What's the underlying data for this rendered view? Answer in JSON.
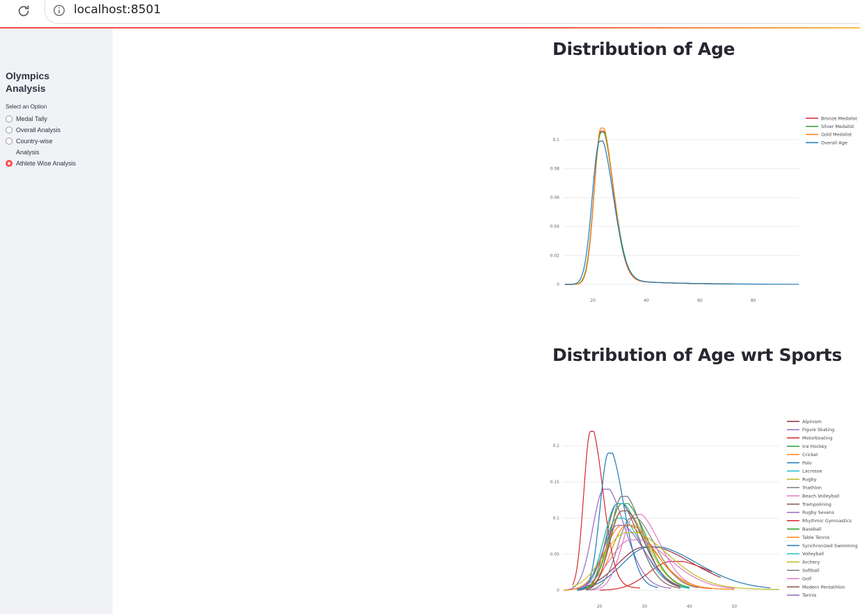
{
  "browser": {
    "url": "localhost:8501"
  },
  "sidebar": {
    "title": "Olympics Analysis",
    "radio_label": "Select an Option",
    "options": [
      {
        "label": "Medal Tally",
        "checked": false
      },
      {
        "label": "Overall Analysis",
        "checked": false
      },
      {
        "label": "Country-wise Analysis",
        "checked": false
      },
      {
        "label": "Athlete Wise Analysis",
        "checked": true
      }
    ],
    "accent_color": "#ff4b4b"
  },
  "main": {
    "section1_title": "Distribution of Age",
    "section2_title": "Distribution of Age wrt Sports"
  },
  "chart_data": [
    {
      "type": "line",
      "title": "",
      "xlabel": "",
      "ylabel": "",
      "xlim": [
        9,
        97
      ],
      "ylim": [
        0,
        0.11
      ],
      "x_ticks": [
        20,
        40,
        60,
        80
      ],
      "y_ticks": [
        0,
        0.02,
        0.04,
        0.06,
        0.08,
        0.1
      ],
      "y_tick_labels": [
        "0",
        "0.02",
        "0.04",
        "0.06",
        "0.08",
        "0.1"
      ],
      "legend_position": "top-right",
      "series": [
        {
          "name": "Bronze Medalist",
          "color": "#d62728",
          "peak_x": 23,
          "peak_y": 0.106,
          "spread": 3.0,
          "max_x": 72
        },
        {
          "name": "Silver Medalist",
          "color": "#2ca02c",
          "peak_x": 23,
          "peak_y": 0.105,
          "spread": 3.1,
          "max_x": 73
        },
        {
          "name": "Gold Medalist",
          "color": "#ff7f0e",
          "peak_x": 23,
          "peak_y": 0.108,
          "spread": 3.0,
          "max_x": 66
        },
        {
          "name": "Overall Age",
          "color": "#1f77b4",
          "peak_x": 22.5,
          "peak_y": 0.099,
          "spread": 3.3,
          "max_x": 97
        }
      ]
    },
    {
      "type": "line",
      "title": "",
      "xlabel": "",
      "ylabel": "",
      "xlim": [
        12,
        60
      ],
      "ylim": [
        0,
        0.23
      ],
      "x_ticks": [
        20,
        30,
        40,
        50
      ],
      "y_ticks": [
        0,
        0.05,
        0.1,
        0.15,
        0.2
      ],
      "y_tick_labels": [
        "0",
        "0.05",
        "0.1",
        "0.15",
        "0.2"
      ],
      "legend_position": "top-right",
      "series": [
        {
          "name": "Alpinism",
          "color": "#8c2d3c",
          "peak_x": 30,
          "peak_y": 0.06,
          "spread": 7,
          "min_x": 14,
          "max_x": 47
        },
        {
          "name": "Figure Skating",
          "color": "#9467bd",
          "peak_x": 21,
          "peak_y": 0.14,
          "spread": 3,
          "min_x": 12,
          "max_x": 36
        },
        {
          "name": "Motorboating",
          "color": "#d62728",
          "peak_x": 36,
          "peak_y": 0.04,
          "spread": 6,
          "min_x": 20,
          "max_x": 45
        },
        {
          "name": "Ice Hockey",
          "color": "#2ca02c",
          "peak_x": 24,
          "peak_y": 0.12,
          "spread": 3.5,
          "min_x": 16,
          "max_x": 40
        },
        {
          "name": "Cricket",
          "color": "#ff7f0e",
          "peak_x": 26,
          "peak_y": 0.09,
          "spread": 4,
          "min_x": 15,
          "max_x": 45
        },
        {
          "name": "Polo",
          "color": "#1f77b4",
          "peak_x": 31,
          "peak_y": 0.06,
          "spread": 7,
          "min_x": 15,
          "max_x": 58
        },
        {
          "name": "Lacrosse",
          "color": "#17becf",
          "peak_x": 24,
          "peak_y": 0.1,
          "spread": 3.5,
          "min_x": 16,
          "max_x": 40
        },
        {
          "name": "Rugby",
          "color": "#bcbd22",
          "peak_x": 25,
          "peak_y": 0.11,
          "spread": 3.5,
          "min_x": 17,
          "max_x": 40
        },
        {
          "name": "Triathlon",
          "color": "#7f7f7f",
          "peak_x": 27,
          "peak_y": 0.1,
          "spread": 3.5,
          "min_x": 17,
          "max_x": 42
        },
        {
          "name": "Beach Volleyball",
          "color": "#e377c2",
          "peak_x": 28,
          "peak_y": 0.105,
          "spread": 3.5,
          "min_x": 18,
          "max_x": 44
        },
        {
          "name": "Trampolining",
          "color": "#8c564b",
          "peak_x": 24,
          "peak_y": 0.12,
          "spread": 3,
          "min_x": 15,
          "max_x": 38
        },
        {
          "name": "Rugby Sevens",
          "color": "#9467bd",
          "peak_x": 25,
          "peak_y": 0.13,
          "spread": 3,
          "min_x": 17,
          "max_x": 37
        },
        {
          "name": "Rhythmic Gymnastics",
          "color": "#d62728",
          "peak_x": 18,
          "peak_y": 0.22,
          "spread": 1.8,
          "min_x": 14,
          "max_x": 29
        },
        {
          "name": "Baseball",
          "color": "#2ca02c",
          "peak_x": 25,
          "peak_y": 0.12,
          "spread": 3.5,
          "min_x": 17,
          "max_x": 40
        },
        {
          "name": "Table Tennis",
          "color": "#ff7f0e",
          "peak_x": 25,
          "peak_y": 0.09,
          "spread": 4.5,
          "min_x": 12,
          "max_x": 50
        },
        {
          "name": "Synchronized Swimming",
          "color": "#1f77b4",
          "peak_x": 22,
          "peak_y": 0.19,
          "spread": 2.2,
          "min_x": 15,
          "max_x": 33
        },
        {
          "name": "Volleyball",
          "color": "#17becf",
          "peak_x": 24,
          "peak_y": 0.12,
          "spread": 3.5,
          "min_x": 16,
          "max_x": 40
        },
        {
          "name": "Archery",
          "color": "#bcbd22",
          "peak_x": 26,
          "peak_y": 0.08,
          "spread": 6,
          "min_x": 14,
          "max_x": 60
        },
        {
          "name": "Softball",
          "color": "#7f7f7f",
          "peak_x": 25,
          "peak_y": 0.13,
          "spread": 3,
          "min_x": 17,
          "max_x": 38
        },
        {
          "name": "Golf",
          "color": "#e377c2",
          "peak_x": 27,
          "peak_y": 0.07,
          "spread": 5.5,
          "min_x": 16,
          "max_x": 50
        },
        {
          "name": "Modern Pentathlon",
          "color": "#8c564b",
          "peak_x": 25,
          "peak_y": 0.11,
          "spread": 3.2,
          "min_x": 17,
          "max_x": 38
        },
        {
          "name": "Tennis",
          "color": "#9467bd",
          "peak_x": 24,
          "peak_y": 0.09,
          "spread": 3.8,
          "min_x": 15,
          "max_x": 38
        }
      ]
    }
  ]
}
